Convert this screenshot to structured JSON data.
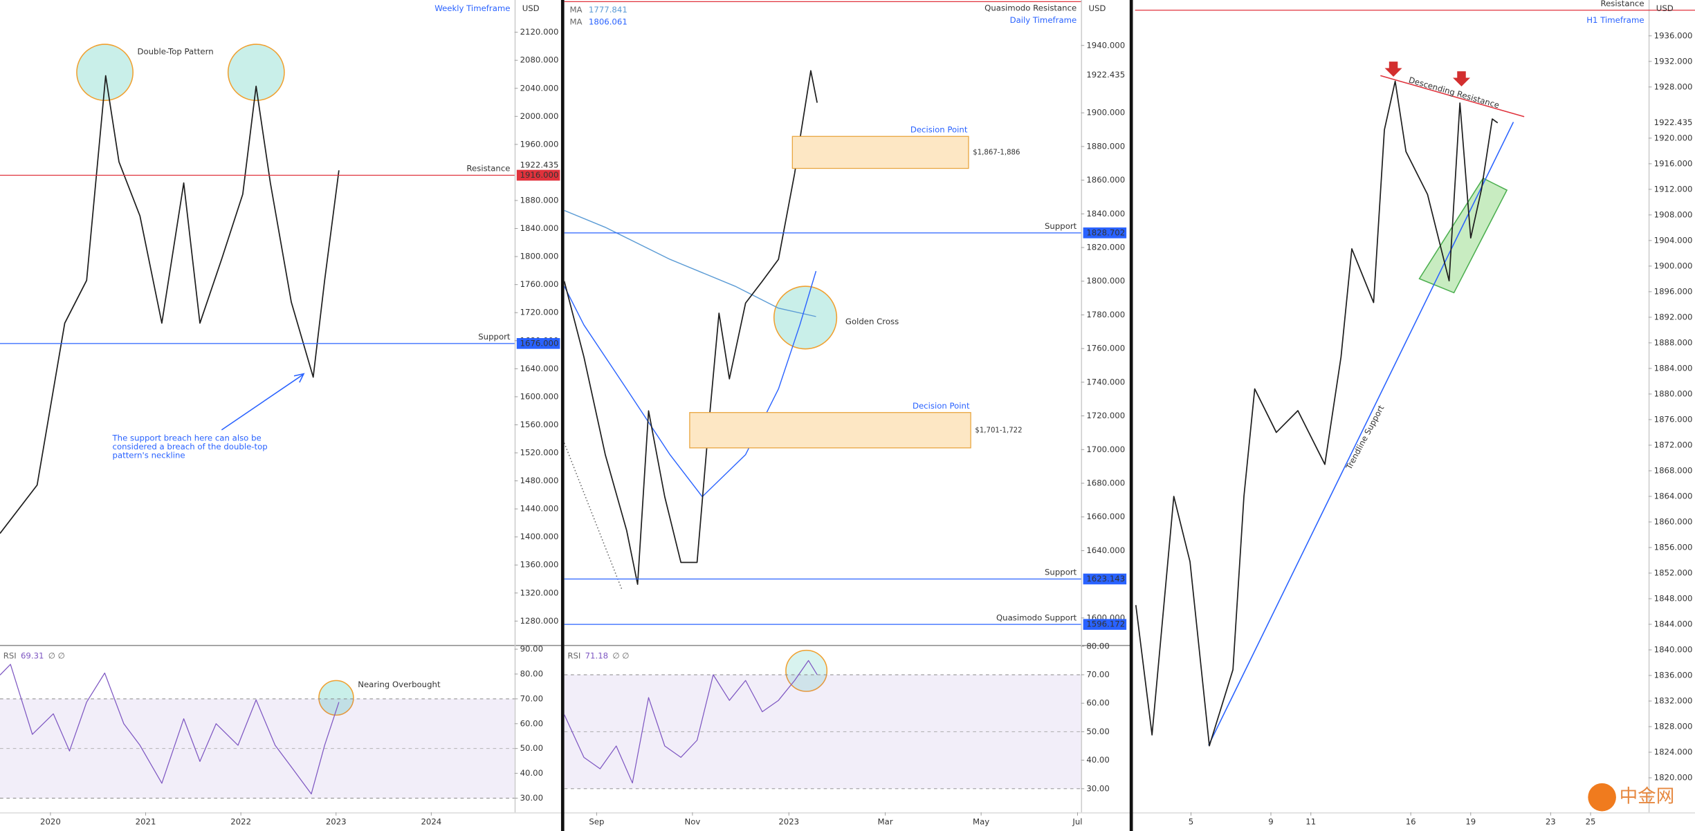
{
  "chart_data": [
    {
      "type": "line",
      "title": "Weekly Timeframe",
      "unit": "USD",
      "color": "#1e1e1e",
      "x": [
        2019.47,
        2019.86,
        2020.15,
        2020.38,
        2020.58,
        2020.72,
        2020.94,
        2021.17,
        2021.4,
        2021.57,
        2021.8,
        2022.02,
        2022.16,
        2022.31,
        2022.53,
        2022.76,
        2022.88,
        2023.03
      ],
      "values": [
        1405,
        1474,
        1705,
        1766,
        2058,
        1935,
        1858,
        1705,
        1905,
        1705,
        1797,
        1889,
        2043,
        1905,
        1735,
        1628,
        1766,
        1923
      ],
      "xlim": [
        2019.47,
        2024.875
      ],
      "ylim": [
        1246,
        2166
      ],
      "yticks": [
        {
          "value": 1280,
          "label": "1280.000"
        },
        {
          "value": 1320,
          "label": "1320.000"
        },
        {
          "value": 1360,
          "label": "1360.000"
        },
        {
          "value": 1400,
          "label": "1400.000"
        },
        {
          "value": 1440,
          "label": "1440.000"
        },
        {
          "value": 1480,
          "label": "1480.000"
        },
        {
          "value": 1520,
          "label": "1520.000"
        },
        {
          "value": 1560,
          "label": "1560.000"
        },
        {
          "value": 1600,
          "label": "1600.000"
        },
        {
          "value": 1640,
          "label": "1640.000"
        },
        {
          "value": 1680,
          "label": "1680.000"
        },
        {
          "value": 1720,
          "label": "1720.000"
        },
        {
          "value": 1760,
          "label": "1760.000"
        },
        {
          "value": 1800,
          "label": "1800.000"
        },
        {
          "value": 1840,
          "label": "1840.000"
        },
        {
          "value": 1880,
          "label": "1880.000"
        },
        {
          "value": 1960,
          "label": "1960.000"
        },
        {
          "value": 2000,
          "label": "2000.000"
        },
        {
          "value": 2040,
          "label": "2040.000"
        },
        {
          "value": 2080,
          "label": "2080.000"
        },
        {
          "value": 2120,
          "label": "2120.000"
        }
      ],
      "last_price": 1922.435,
      "levels": [
        {
          "name": "Resistance",
          "value": 1916,
          "tag": "1916.000",
          "color": "#e0323c"
        },
        {
          "name": "Support",
          "value": 1676,
          "tag": "1676.000",
          "color": "#2962ff"
        }
      ],
      "annotations": [
        "Double-Top Pattern",
        "The support breach here can also be considered a breach of the double-top pattern's neckline"
      ]
    },
    {
      "type": "line",
      "indicator": "RSI",
      "indicator_value": 69.31,
      "indicator_flags": "∅ ∅",
      "color": "#7e57c2",
      "x": [
        2019.47,
        2019.58,
        2019.81,
        2020.03,
        2020.2,
        2020.38,
        2020.57,
        2020.77,
        2020.94,
        2021.17,
        2021.4,
        2021.57,
        2021.74,
        2021.97,
        2022.16,
        2022.36,
        2022.53,
        2022.74,
        2022.88,
        2023.03
      ],
      "values": [
        79.6,
        83.9,
        55.7,
        64,
        49,
        68.7,
        80.4,
        60,
        51.3,
        36,
        62,
        44.8,
        60,
        51.3,
        69.6,
        51.3,
        42.6,
        31.7,
        51.3,
        68.7
      ],
      "xlim": [
        2019.47,
        2024.875
      ],
      "xticks": [
        2020,
        2021,
        2022,
        2023,
        2024
      ],
      "ylim": [
        24.3,
        91.3
      ],
      "yticks": [
        {
          "value": 30,
          "label": "30.00"
        },
        {
          "value": 40,
          "label": "40.00"
        },
        {
          "value": 50,
          "label": "50.00"
        },
        {
          "value": 60,
          "label": "60.00"
        },
        {
          "value": 70,
          "label": "70.00"
        },
        {
          "value": 80,
          "label": "80.00"
        },
        {
          "value": 90,
          "label": "90.00"
        }
      ],
      "bands": [
        30,
        70
      ],
      "midline": 50,
      "annotations": [
        "Nearing Overbought"
      ]
    },
    {
      "type": "line",
      "title": "Daily Timeframe",
      "unit": "USD",
      "color": "#1e1e1e",
      "x": [
        2022.611,
        2022.645,
        2022.682,
        2022.719,
        2022.738,
        2022.757,
        2022.785,
        2022.813,
        2022.841,
        2022.86,
        2022.879,
        2022.897,
        2022.925,
        2022.954,
        2022.982,
        2023.01,
        2023.019,
        2023.038,
        2023.049
      ],
      "values": [
        1800,
        1755,
        1697,
        1652,
        1620,
        1723,
        1672,
        1633,
        1633,
        1710,
        1781,
        1742,
        1787,
        1800,
        1813,
        1864,
        1884,
        1925,
        1906
      ],
      "moving_averages": [
        {
          "name": "MA",
          "value_label": "1777.841",
          "color": "#5b9bd5",
          "x": [
            2022.611,
            2022.682,
            2022.794,
            2022.907,
            2022.982,
            2023.047
          ],
          "values": [
            1842,
            1832,
            1813,
            1797,
            1784,
            1779
          ]
        },
        {
          "name": "MA",
          "value_label": "1806.061",
          "color": "#2962ff",
          "x": [
            2022.611,
            2022.645,
            2022.719,
            2022.794,
            2022.85,
            2022.925,
            2022.982,
            2023.019,
            2023.047
          ],
          "values": [
            1797,
            1774,
            1736,
            1697,
            1672,
            1697,
            1736,
            1774,
            1806
          ]
        }
      ],
      "xlim": [
        2022.611,
        2023.506
      ],
      "ylim": [
        1584,
        1967
      ],
      "yticks": [
        {
          "value": 1600,
          "label": "1600.000"
        },
        {
          "value": 1640,
          "label": "1640.000"
        },
        {
          "value": 1660,
          "label": "1660.000"
        },
        {
          "value": 1680,
          "label": "1680.000"
        },
        {
          "value": 1700,
          "label": "1700.000"
        },
        {
          "value": 1720,
          "label": "1720.000"
        },
        {
          "value": 1740,
          "label": "1740.000"
        },
        {
          "value": 1760,
          "label": "1760.000"
        },
        {
          "value": 1780,
          "label": "1780.000"
        },
        {
          "value": 1800,
          "label": "1800.000"
        },
        {
          "value": 1820,
          "label": "1820.000"
        },
        {
          "value": 1840,
          "label": "1840.000"
        },
        {
          "value": 1860,
          "label": "1860.000"
        },
        {
          "value": 1880,
          "label": "1880.000"
        },
        {
          "value": 1900,
          "label": "1900.000"
        },
        {
          "value": 1940,
          "label": "1940.000"
        }
      ],
      "last_price": 1922.435,
      "levels": [
        {
          "name": "Quasimodo Resistance",
          "value": 1966,
          "color": "#e0323c"
        },
        {
          "name": "Support",
          "value": 1828.702,
          "tag": 1828.702,
          "color": "#2962ff"
        },
        {
          "name": "Support",
          "value": 1623.143,
          "tag": 1623.143,
          "color": "#2962ff"
        },
        {
          "name": "Quasimodo Support",
          "value": 1596.172,
          "tag": 1596.172,
          "color": "#2962ff"
        }
      ],
      "zones": [
        {
          "name": "Decision Point",
          "range_label": "$1,867-1,886",
          "low": 1867,
          "high": 1886
        },
        {
          "name": "Decision Point",
          "range_label": "$1,701-1,722",
          "low": 1701,
          "high": 1722
        }
      ],
      "annotations": [
        "Golden Cross"
      ]
    },
    {
      "type": "line",
      "indicator": "RSI",
      "indicator_value": 71.18,
      "indicator_flags": "∅ ∅",
      "color": "#7e57c2",
      "x": [
        2022.611,
        2022.645,
        2022.673,
        2022.701,
        2022.729,
        2022.757,
        2022.785,
        2022.813,
        2022.841,
        2022.869,
        2022.897,
        2022.925,
        2022.954,
        2022.982,
        2023.01,
        2023.034,
        2023.049
      ],
      "values": [
        56,
        41,
        37,
        45,
        32,
        62,
        45,
        41,
        47,
        70,
        61,
        68,
        57,
        61,
        68,
        75,
        70
      ],
      "xlim": [
        2022.611,
        2023.506
      ],
      "xticks": [
        {
          "value": 2022.667,
          "label": "Sep"
        },
        {
          "value": 2022.833,
          "label": "Nov"
        },
        2023,
        {
          "value": 2023.167,
          "label": "Mar"
        },
        {
          "value": 2023.333,
          "label": "May"
        },
        {
          "value": 2023.5,
          "label": "Jul"
        }
      ],
      "ylim": [
        21.7,
        80.1
      ],
      "yticks": [
        {
          "value": 30,
          "label": "30.00"
        },
        {
          "value": 40,
          "label": "40.00"
        },
        {
          "value": 50,
          "label": "50.00"
        },
        {
          "value": 60,
          "label": "60.00"
        },
        {
          "value": 70,
          "label": "70.00"
        },
        {
          "value": 80,
          "label": "80.00"
        }
      ],
      "bands": [
        30,
        70
      ],
      "midline": 50
    },
    {
      "type": "line",
      "title": "H1 Timeframe",
      "unit": "USD",
      "color": "#1e1e1e",
      "x": [
        2.24,
        3.05,
        4.14,
        4.95,
        5.92,
        7.1,
        7.65,
        8.19,
        9.27,
        10.35,
        11.7,
        12.51,
        13.05,
        14.14,
        14.68,
        15.22,
        15.76,
        16.84,
        17.92,
        18.46,
        19,
        19.54,
        20.08,
        20.35
      ],
      "values": [
        1847,
        1826.7,
        1864,
        1853.8,
        1825,
        1836.9,
        1864,
        1880.8,
        1874,
        1877.4,
        1869,
        1885.8,
        1902.7,
        1894.3,
        1921.3,
        1928.9,
        1917.9,
        1911.2,
        1897.7,
        1925.5,
        1904.4,
        1912,
        1923,
        1922.4
      ],
      "xlim": [
        2.2,
        27.9
      ],
      "xticks": [
        5,
        9,
        11,
        16,
        19,
        23,
        25
      ],
      "ylim": [
        1814.6,
        1941.6
      ],
      "yticks": [
        {
          "value": 1820,
          "label": "1820.000"
        },
        {
          "value": 1824,
          "label": "1824.000"
        },
        {
          "value": 1828,
          "label": "1828.000"
        },
        {
          "value": 1832,
          "label": "1832.000"
        },
        {
          "value": 1836,
          "label": "1836.000"
        },
        {
          "value": 1840,
          "label": "1840.000"
        },
        {
          "value": 1844,
          "label": "1844.000"
        },
        {
          "value": 1848,
          "label": "1848.000"
        },
        {
          "value": 1852,
          "label": "1852.000"
        },
        {
          "value": 1856,
          "label": "1856.000"
        },
        {
          "value": 1860,
          "label": "1860.000"
        },
        {
          "value": 1864,
          "label": "1864.000"
        },
        {
          "value": 1868,
          "label": "1868.000"
        },
        {
          "value": 1872,
          "label": "1872.000"
        },
        {
          "value": 1876,
          "label": "1876.000"
        },
        {
          "value": 1880,
          "label": "1880.000"
        },
        {
          "value": 1884,
          "label": "1884.000"
        },
        {
          "value": 1888,
          "label": "1888.000"
        },
        {
          "value": 1892,
          "label": "1892.000"
        },
        {
          "value": 1896,
          "label": "1896.000"
        },
        {
          "value": 1900,
          "label": "1900.000"
        },
        {
          "value": 1904,
          "label": "1904.000"
        },
        {
          "value": 1908,
          "label": "1908.000"
        },
        {
          "value": 1912,
          "label": "1912.000"
        },
        {
          "value": 1916,
          "label": "1916.000"
        },
        {
          "value": 1920,
          "label": "1920.000"
        },
        {
          "value": 1928,
          "label": "1928.000"
        },
        {
          "value": 1932,
          "label": "1932.000"
        },
        {
          "value": 1936,
          "label": "1936.000"
        }
      ],
      "last_price": 1922.435,
      "levels": [
        {
          "name": "Resistance",
          "value": 1940,
          "color": "#e0323c"
        }
      ],
      "annotations": [
        "Descending Resistance",
        "Trendline Support"
      ]
    }
  ],
  "watermark": "中金网"
}
